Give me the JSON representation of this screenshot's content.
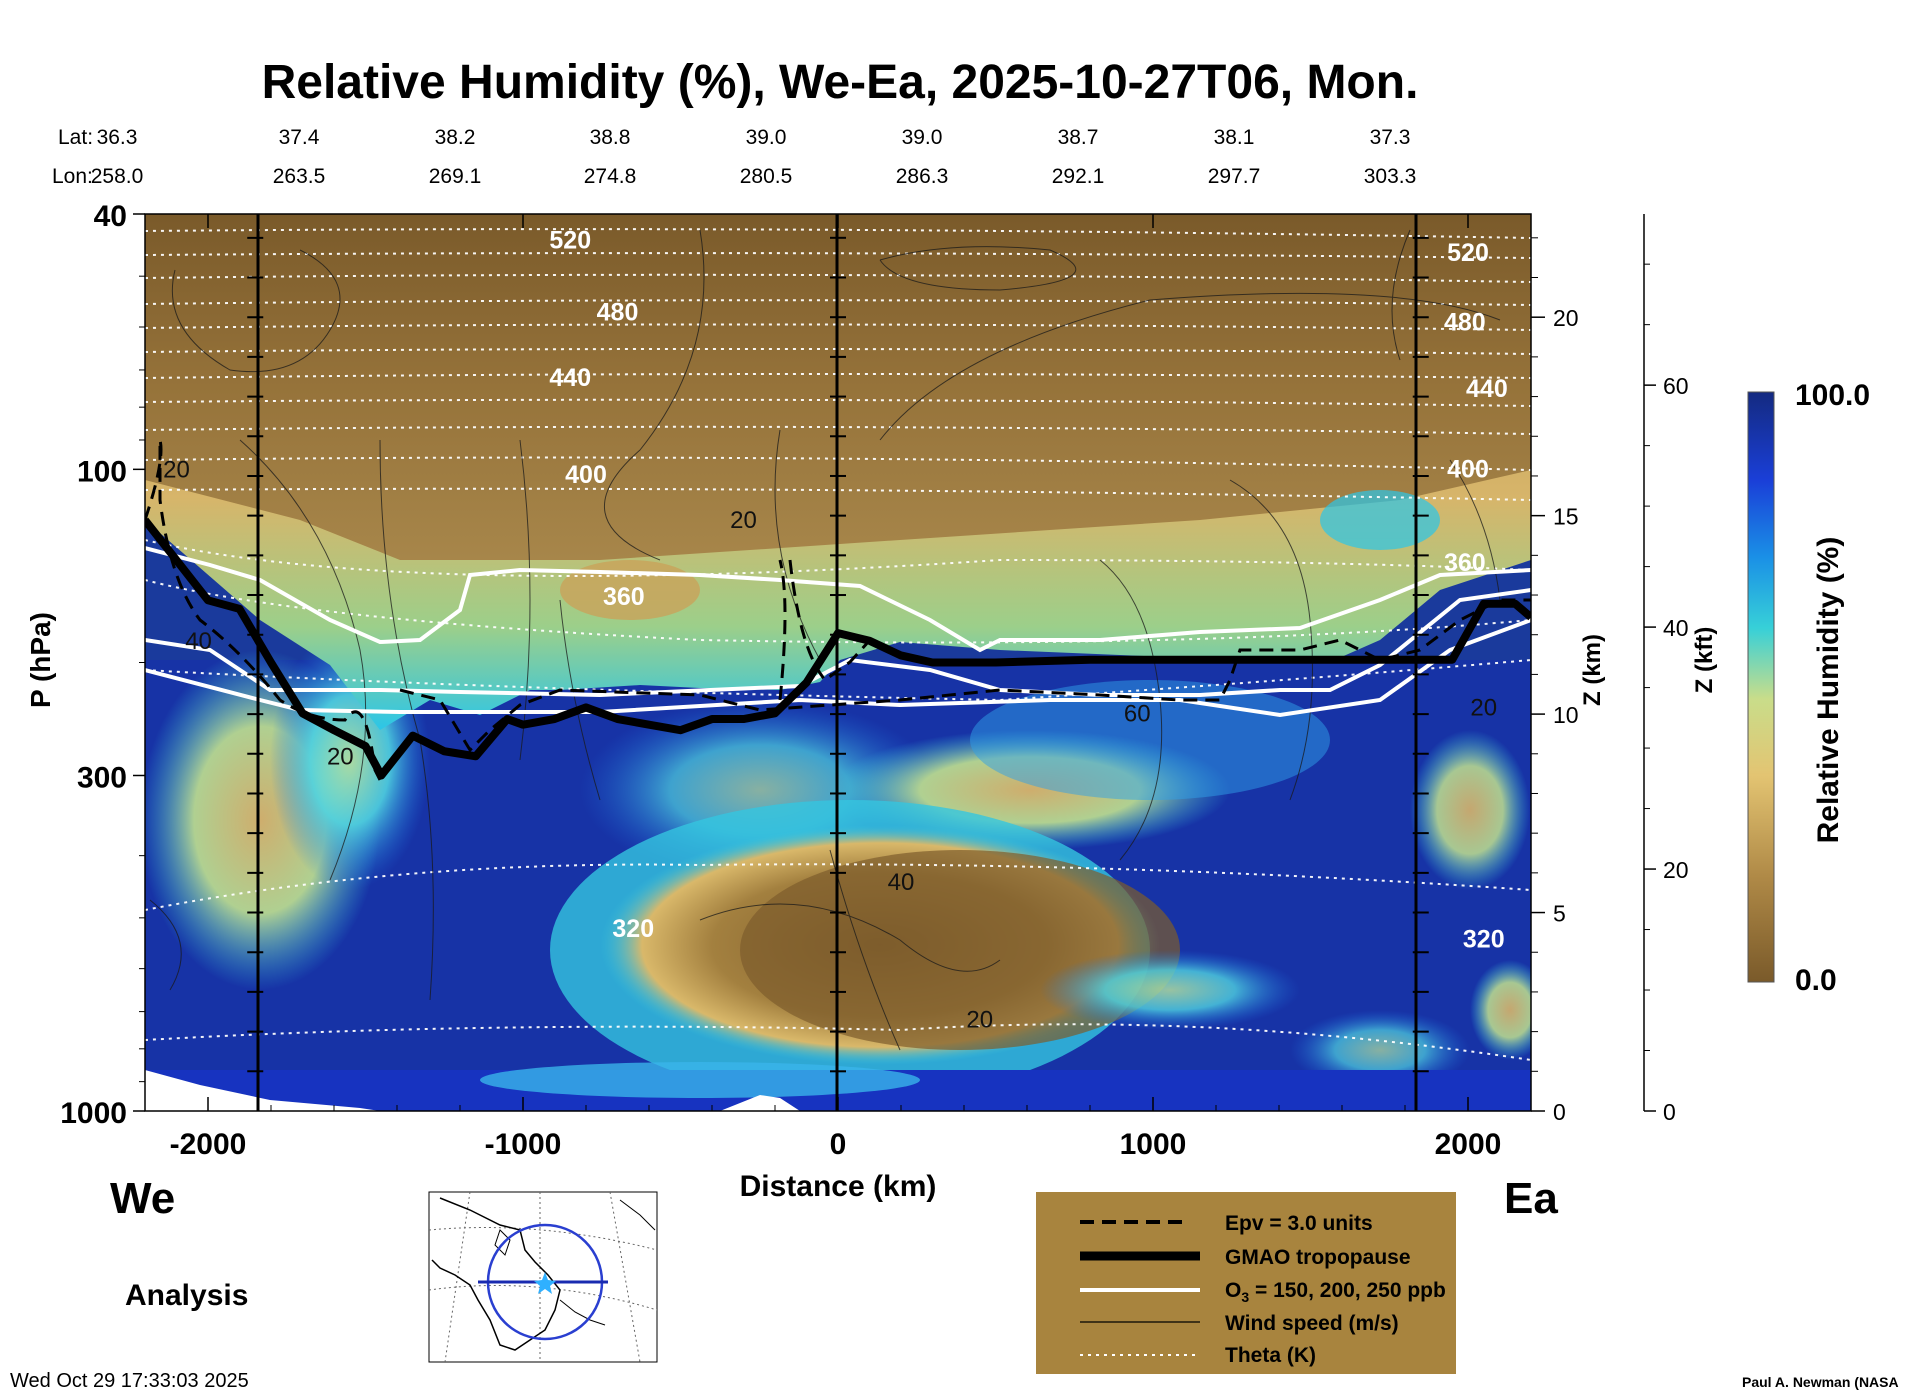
{
  "chart_data": {
    "type": "heatmap",
    "title": "Relative Humidity (%), We-Ea, 2025-10-27T06, Mon.",
    "xlabel": "Distance (km)",
    "ylabel": "P (hPa)",
    "z_km_label": "Z (km)",
    "z_kft_label": "Z (kft)",
    "colorbar_label": "Relative Humidity (%)",
    "colorbar_max_label": "100.0",
    "colorbar_min_label": "0.0",
    "colorbar_range": [
      0,
      100
    ],
    "xlim": [
      -2200,
      2200
    ],
    "ylim_hpa": [
      1000,
      40
    ],
    "x_ticks": [
      -2000,
      -1000,
      0,
      1000,
      2000
    ],
    "x_tick_labels": [
      "-2000",
      "-1000",
      "0",
      "1000",
      "2000"
    ],
    "p_tick_labels": [
      "40",
      "100",
      "300",
      "1000"
    ],
    "z_km_ticks": [
      0,
      5,
      10,
      15,
      20
    ],
    "z_km_tick_labels": [
      "0",
      "5",
      "10",
      "15",
      "20"
    ],
    "z_kft_ticks": [
      0,
      20,
      40,
      60
    ],
    "z_kft_tick_labels": [
      "0",
      "20",
      "40",
      "60"
    ],
    "lat_label": "Lat:",
    "lon_label": "Lon:",
    "lat_values": [
      "36.3",
      "37.4",
      "38.2",
      "38.8",
      "39.0",
      "39.0",
      "38.7",
      "38.1",
      "37.3"
    ],
    "lon_values": [
      "258.0",
      "263.5",
      "269.1",
      "274.8",
      "280.5",
      "286.3",
      "292.1",
      "297.7",
      "303.3"
    ],
    "vertical_markers_km": [
      -1850,
      0,
      1850
    ],
    "theta_labels": [
      {
        "text": "520",
        "x": -850,
        "p": 44
      },
      {
        "text": "480",
        "x": -700,
        "p": 57
      },
      {
        "text": "440",
        "x": -850,
        "p": 72
      },
      {
        "text": "400",
        "x": -800,
        "p": 102
      },
      {
        "text": "360",
        "x": -680,
        "p": 158
      },
      {
        "text": "320",
        "x": -650,
        "p": 520
      },
      {
        "text": "520",
        "x": 2000,
        "p": 46
      },
      {
        "text": "480",
        "x": 1990,
        "p": 59
      },
      {
        "text": "440",
        "x": 2060,
        "p": 75
      },
      {
        "text": "400",
        "x": 2000,
        "p": 100
      },
      {
        "text": "360",
        "x": 1990,
        "p": 140
      },
      {
        "text": "320",
        "x": 2050,
        "p": 540
      }
    ],
    "wind_labels": [
      {
        "text": "20",
        "x": -2100,
        "p": 100
      },
      {
        "text": "40",
        "x": -2030,
        "p": 185
      },
      {
        "text": "20",
        "x": -1580,
        "p": 280
      },
      {
        "text": "20",
        "x": -300,
        "p": 120
      },
      {
        "text": "40",
        "x": 200,
        "p": 440
      },
      {
        "text": "20",
        "x": 450,
        "p": 720
      },
      {
        "text": "60",
        "x": 950,
        "p": 240
      },
      {
        "text": "20",
        "x": 2050,
        "p": 235
      }
    ],
    "tropopause": {
      "x": [
        -2200,
        -2000,
        -1900,
        -1800,
        -1700,
        -1600,
        -1500,
        -1450,
        -1350,
        -1250,
        -1150,
        -1050,
        -1000,
        -900,
        -800,
        -700,
        -600,
        -500,
        -400,
        -300,
        -200,
        -100,
        0,
        100,
        200,
        300,
        500,
        800,
        1000,
        1200,
        1400,
        1600,
        1800,
        1950,
        2050,
        2150,
        2200
      ],
      "p": [
        120,
        160,
        165,
        200,
        240,
        255,
        270,
        300,
        260,
        275,
        280,
        245,
        250,
        245,
        235,
        245,
        250,
        255,
        245,
        245,
        240,
        215,
        180,
        185,
        195,
        200,
        200,
        198,
        198,
        198,
        198,
        198,
        198,
        198,
        162,
        162,
        170
      ]
    },
    "legend": {
      "epv": "Epv = 3.0 units",
      "tropopause": "GMAO tropopause",
      "ozone_prefix": "O",
      "ozone_sub": "3",
      "ozone_suffix": " = 150, 200, 250 ppb",
      "wind": "Wind speed (m/s)",
      "theta": "Theta (K)"
    },
    "left_label": "We",
    "right_label": "Ea"
  },
  "footer": {
    "analysis": "Analysis",
    "timestamp": "Wed Oct 29 17:33:03 2025",
    "credit": "Paul A. Newman (NASA"
  },
  "colors": {
    "brown_dark": "#7c5c2c",
    "tan": "#b08a47",
    "legend_bg": "#a8843e",
    "navy": "#1a2b8c",
    "blue": "#1a4fd6",
    "cyan": "#28c9e8"
  }
}
